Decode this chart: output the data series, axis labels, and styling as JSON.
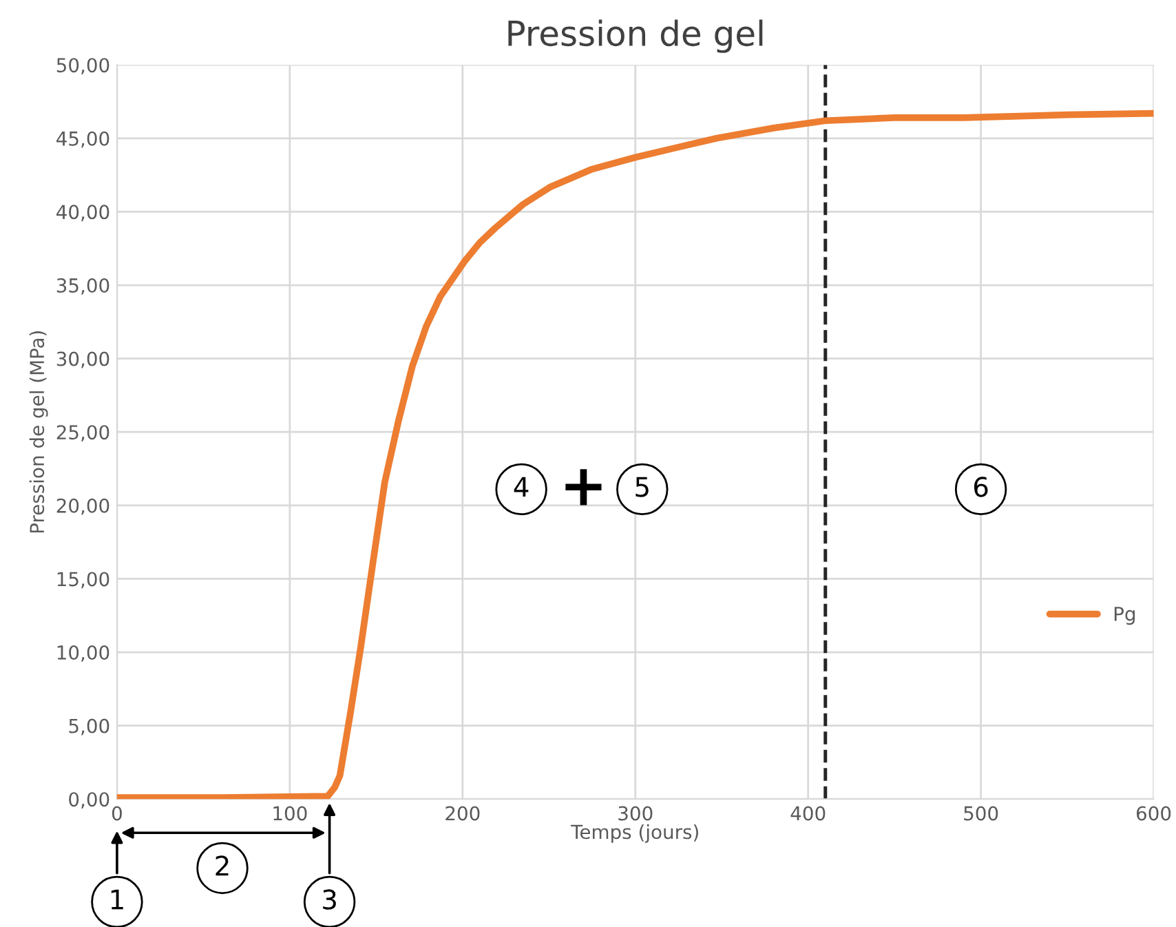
{
  "chart_data": {
    "type": "line",
    "title": "Pression de gel",
    "xlabel": "Temps (jours)",
    "ylabel": "Pression de gel (MPa)",
    "series": [
      {
        "name": "Pg",
        "color": "#ed7d31",
        "x": [
          0,
          60,
          122,
          126,
          129,
          135,
          141,
          148,
          155,
          163,
          171,
          179,
          187,
          194,
          201,
          210,
          219,
          235,
          251,
          275,
          300,
          325,
          347,
          380,
          410,
          450,
          490,
          550,
          600
        ],
        "values": [
          0.1,
          0.1,
          0.2,
          0.8,
          1.6,
          5.8,
          10.3,
          16.0,
          21.6,
          25.8,
          29.5,
          32.2,
          34.2,
          35.4,
          36.6,
          37.9,
          38.9,
          40.5,
          41.7,
          42.9,
          43.7,
          44.4,
          45.0,
          45.7,
          46.2,
          46.4,
          46.4,
          46.6,
          46.7
        ]
      }
    ],
    "xlim": [
      0,
      600
    ],
    "xticks": [
      0,
      100,
      200,
      300,
      400,
      500,
      600
    ],
    "ylim": [
      0,
      50
    ],
    "yticks": [
      {
        "value": 0,
        "label": "0,00"
      },
      {
        "value": 5,
        "label": "5,00"
      },
      {
        "value": 10,
        "label": "10,00"
      },
      {
        "value": 15,
        "label": "15,00"
      },
      {
        "value": 20,
        "label": "20,00"
      },
      {
        "value": 25,
        "label": "25,00"
      },
      {
        "value": 30,
        "label": "30,00"
      },
      {
        "value": 35,
        "label": "35,00"
      },
      {
        "value": 40,
        "label": "40,00"
      },
      {
        "value": 45,
        "label": "45,00"
      },
      {
        "value": 50,
        "label": "50,00"
      }
    ],
    "ref_lines": [
      {
        "axis": "x",
        "value": 410,
        "color": "#262626",
        "line_style": "dashed"
      }
    ],
    "annotations": [
      "1",
      "2",
      "3",
      "4",
      "+",
      "5",
      "6"
    ],
    "grid": true,
    "legend": "right",
    "marker": "none",
    "line_style": "solid"
  }
}
